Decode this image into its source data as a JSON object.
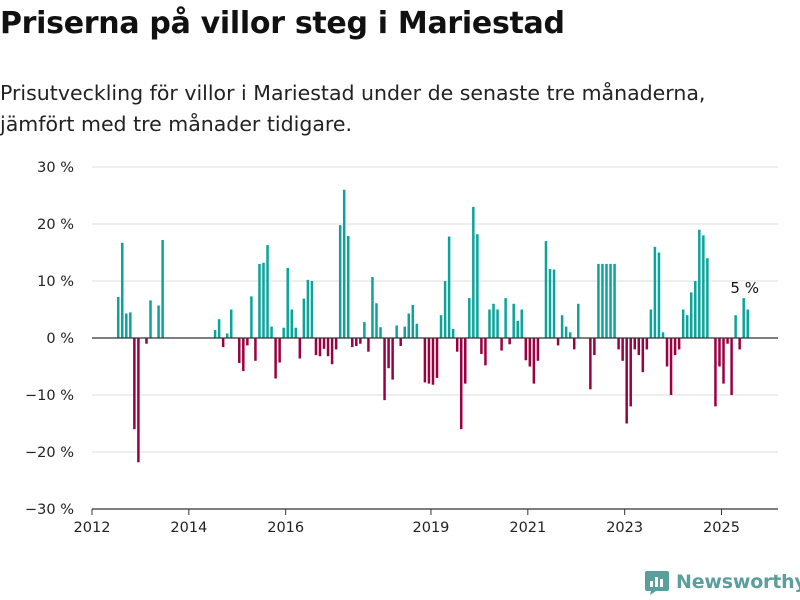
{
  "header": {
    "title": "Priserna på villor steg i Mariestad",
    "subtitle": "Prisutveckling för villor i Mariestad under de senaste tre månaderna, jämfört med tre månader tidigare."
  },
  "colors": {
    "positive": "#0ca49a",
    "negative": "#9b0040",
    "grid": "#dedede",
    "axis": "#333333"
  },
  "brand": {
    "name": "Newsworthy",
    "icon": "bar-chart-logo-icon"
  },
  "chart_data": {
    "type": "bar",
    "x_type": "date",
    "ylim": [
      -30,
      30
    ],
    "y_ticks": [
      30,
      20,
      10,
      0,
      -10,
      -20,
      -30
    ],
    "y_tick_labels": [
      "30 %",
      "20 %",
      "10 %",
      "0 %",
      "−10 %",
      "−20 %",
      "−30 %"
    ],
    "x_ticks": [
      "2012-01",
      "2014-01",
      "2016-01",
      "2019-01",
      "2021-01",
      "2023-01",
      "2025-01"
    ],
    "x_tick_labels": [
      "2012",
      "2014",
      "2016",
      "2019",
      "2021",
      "2023",
      "2025"
    ],
    "x_range": [
      "2012-01",
      "2026-03"
    ],
    "annotation": {
      "text": "5 %",
      "date": "2025-06"
    },
    "grid": true,
    "series": [
      {
        "dates": [
          "2012-07",
          "2012-08",
          "2012-09",
          "2012-10",
          "2012-11",
          "2012-12",
          "2013-01",
          "2013-02",
          "2013-03",
          "2013-04",
          "2013-05",
          "2013-06",
          "2014-07",
          "2014-08",
          "2014-09",
          "2014-10",
          "2014-11",
          "2014-12",
          "2015-01",
          "2015-02",
          "2015-03",
          "2015-04",
          "2015-05",
          "2015-06",
          "2015-07",
          "2015-08",
          "2015-09",
          "2015-10",
          "2015-11",
          "2015-12",
          "2016-01",
          "2016-02",
          "2016-03",
          "2016-04",
          "2016-05",
          "2016-06",
          "2016-07",
          "2016-08",
          "2016-09",
          "2016-10",
          "2016-11",
          "2016-12",
          "2017-01",
          "2017-02",
          "2017-03",
          "2017-04",
          "2017-05",
          "2017-06",
          "2017-07",
          "2017-08",
          "2017-09",
          "2017-10",
          "2017-11",
          "2017-12",
          "2018-01",
          "2018-02",
          "2018-03",
          "2018-04",
          "2018-05",
          "2018-06",
          "2018-07",
          "2018-08",
          "2018-09",
          "2018-10",
          "2018-11",
          "2018-12",
          "2019-01",
          "2019-02",
          "2019-03",
          "2019-04",
          "2019-05",
          "2019-06",
          "2019-07",
          "2019-08",
          "2019-09",
          "2019-10",
          "2019-11",
          "2019-12",
          "2020-01",
          "2020-02",
          "2020-03",
          "2020-04",
          "2020-05",
          "2020-06",
          "2020-07",
          "2020-08",
          "2020-09",
          "2020-10",
          "2020-11",
          "2020-12",
          "2021-01",
          "2021-02",
          "2021-03",
          "2021-04",
          "2021-05",
          "2021-06",
          "2021-07",
          "2021-08",
          "2021-09",
          "2021-10",
          "2021-11",
          "2021-12",
          "2022-01",
          "2022-02",
          "2022-03",
          "2022-04",
          "2022-05",
          "2022-06",
          "2022-07",
          "2022-08",
          "2022-09",
          "2022-10",
          "2022-11",
          "2022-12",
          "2023-01",
          "2023-02",
          "2023-03",
          "2023-04",
          "2023-05",
          "2023-06",
          "2023-07",
          "2023-08",
          "2023-09",
          "2023-10",
          "2023-11",
          "2023-12",
          "2024-01",
          "2024-02",
          "2024-03",
          "2024-04",
          "2024-05",
          "2024-06",
          "2024-07",
          "2024-08",
          "2024-09",
          "2024-10",
          "2024-11",
          "2024-12",
          "2025-01",
          "2025-02",
          "2025-03",
          "2025-04",
          "2025-05",
          "2025-06",
          "2025-07"
        ],
        "values": [
          7.2,
          16.7,
          4.3,
          4.5,
          -16.0,
          -21.8,
          null,
          -1.0,
          6.6,
          null,
          5.7,
          17.2,
          1.4,
          3.3,
          -1.6,
          0.8,
          5.0,
          null,
          -4.4,
          -5.8,
          -1.3,
          7.3,
          -4.0,
          13.0,
          13.2,
          16.3,
          2.0,
          -7.1,
          -4.3,
          1.8,
          12.3,
          5.0,
          1.8,
          -3.6,
          6.9,
          10.2,
          10.0,
          -3.0,
          -3.2,
          -1.9,
          -3.2,
          -4.6,
          -2.0,
          19.8,
          26.0,
          17.9,
          -1.6,
          -1.4,
          -1.0,
          2.8,
          -2.4,
          10.7,
          6.1,
          1.9,
          -10.9,
          -5.3,
          -7.3,
          2.2,
          -1.4,
          2.0,
          4.3,
          5.8,
          2.5,
          null,
          -7.8,
          -8.0,
          -8.2,
          -7.0,
          4.0,
          10.0,
          17.8,
          1.6,
          -2.4,
          -16.0,
          -8.0,
          7.0,
          23.0,
          18.2,
          -2.8,
          -4.8,
          5.0,
          6.0,
          5.0,
          -2.2,
          7.0,
          -1.1,
          6.0,
          3.0,
          5.0,
          -3.9,
          -5.0,
          -8.0,
          -4.0,
          null,
          17.0,
          12.1,
          12.0,
          -1.3,
          4.0,
          2.0,
          1.0,
          -2.0,
          6.0,
          null,
          null,
          -9.0,
          -3.0,
          13.0,
          13.0,
          13.0,
          13.0,
          13.0,
          -2.0,
          -4.0,
          -15.0,
          -12.0,
          -2.0,
          -3.0,
          -6.0,
          -2.0,
          5.0,
          16.0,
          15.0,
          1.0,
          -5.0,
          -10.0,
          -3.0,
          -2.0,
          5.0,
          4.0,
          8.0,
          10.0,
          19.0,
          18.0,
          14.0,
          null,
          -12.0,
          -5.0,
          -8.0,
          -1.0,
          -10.0,
          4.0,
          -2.0,
          7.0,
          5.0
        ]
      }
    ]
  }
}
